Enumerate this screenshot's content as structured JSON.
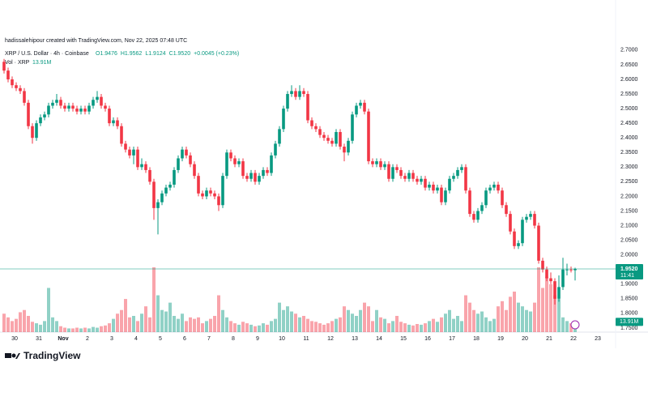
{
  "header": "hadissalehipour created with TradingView.com, Nov 22, 2025 07:48 UTC",
  "legend": {
    "symbol": "XRP / U.S. Dollar · 4h · Coinbase",
    "ohlc": [
      "O1.9476",
      "H1.9562",
      "L1.9124",
      "C1.9520",
      "+0.0045 (+0.23%)"
    ],
    "volume_name": "Vol · XRP",
    "volume_value": "13.91M"
  },
  "price_tag": {
    "price": "1.9520",
    "countdown": "11:41"
  },
  "volume_tag": "13.91M",
  "brand": "TradingView",
  "chart_data": {
    "type": "candlestick",
    "up_color": "#089981",
    "down_color": "#f23645",
    "price_line_color": "#089981",
    "ylim": [
      1.736,
      2.719
    ],
    "yticks": [
      {
        "value": 1.75,
        "label": "1.7500"
      },
      {
        "value": 1.8,
        "label": "1.8000"
      },
      {
        "value": 1.85,
        "label": "1.8500"
      },
      {
        "value": 1.9,
        "label": "1.9000"
      },
      {
        "value": 1.95,
        "label": "1.9500"
      },
      {
        "value": 2.0,
        "label": "2.0000"
      },
      {
        "value": 2.05,
        "label": "2.0500"
      },
      {
        "value": 2.1,
        "label": "2.1000"
      },
      {
        "value": 2.15,
        "label": "2.1500"
      },
      {
        "value": 2.2,
        "label": "2.2000"
      },
      {
        "value": 2.25,
        "label": "2.2500"
      },
      {
        "value": 2.3,
        "label": "2.3000"
      },
      {
        "value": 2.35,
        "label": "2.3500"
      },
      {
        "value": 2.4,
        "label": "2.4000"
      },
      {
        "value": 2.45,
        "label": "2.4500"
      },
      {
        "value": 2.5,
        "label": "2.5000"
      },
      {
        "value": 2.55,
        "label": "2.5500"
      },
      {
        "value": 2.6,
        "label": "2.6000"
      },
      {
        "value": 2.65,
        "label": "2.6500"
      },
      {
        "value": 2.7,
        "label": "2.7000"
      }
    ],
    "x_labels": [
      "30",
      "31",
      "Nov",
      "2",
      "3",
      "4",
      "5",
      "6",
      "7",
      "8",
      "9",
      "10",
      "11",
      "12",
      "13",
      "14",
      "15",
      "16",
      "17",
      "18",
      "19",
      "20",
      "21",
      "22",
      "23"
    ],
    "grid": false,
    "candles": [
      [
        2.66,
        2.67,
        2.62,
        2.63
      ],
      [
        2.63,
        2.64,
        2.59,
        2.6
      ],
      [
        2.6,
        2.61,
        2.57,
        2.58
      ],
      [
        2.58,
        2.59,
        2.56,
        2.57
      ],
      [
        2.57,
        2.58,
        2.55,
        2.56
      ],
      [
        2.56,
        2.57,
        2.51,
        2.52
      ],
      [
        2.52,
        2.53,
        2.43,
        2.44
      ],
      [
        2.44,
        2.45,
        2.38,
        2.4
      ],
      [
        2.4,
        2.46,
        2.39,
        2.45
      ],
      [
        2.45,
        2.48,
        2.44,
        2.47
      ],
      [
        2.47,
        2.49,
        2.46,
        2.48
      ],
      [
        2.48,
        2.52,
        2.47,
        2.51
      ],
      [
        2.51,
        2.53,
        2.5,
        2.52
      ],
      [
        2.52,
        2.55,
        2.51,
        2.53
      ],
      [
        2.53,
        2.54,
        2.5,
        2.51
      ],
      [
        2.51,
        2.52,
        2.49,
        2.5
      ],
      [
        2.5,
        2.52,
        2.49,
        2.51
      ],
      [
        2.51,
        2.52,
        2.49,
        2.5
      ],
      [
        2.5,
        2.51,
        2.48,
        2.49
      ],
      [
        2.49,
        2.51,
        2.48,
        2.5
      ],
      [
        2.5,
        2.51,
        2.48,
        2.49
      ],
      [
        2.49,
        2.52,
        2.48,
        2.51
      ],
      [
        2.51,
        2.54,
        2.5,
        2.53
      ],
      [
        2.53,
        2.56,
        2.52,
        2.54
      ],
      [
        2.54,
        2.55,
        2.5,
        2.51
      ],
      [
        2.51,
        2.52,
        2.49,
        2.5
      ],
      [
        2.5,
        2.51,
        2.44,
        2.45
      ],
      [
        2.45,
        2.47,
        2.44,
        2.46
      ],
      [
        2.46,
        2.47,
        2.43,
        2.44
      ],
      [
        2.44,
        2.45,
        2.37,
        2.38
      ],
      [
        2.38,
        2.39,
        2.35,
        2.36
      ],
      [
        2.36,
        2.37,
        2.33,
        2.34
      ],
      [
        2.34,
        2.37,
        2.31,
        2.36
      ],
      [
        2.36,
        2.37,
        2.29,
        2.3
      ],
      [
        2.3,
        2.33,
        2.29,
        2.31
      ],
      [
        2.31,
        2.32,
        2.28,
        2.29
      ],
      [
        2.29,
        2.3,
        2.24,
        2.25
      ],
      [
        2.25,
        2.26,
        2.12,
        2.16
      ],
      [
        2.16,
        2.19,
        2.07,
        2.18
      ],
      [
        2.18,
        2.22,
        2.17,
        2.21
      ],
      [
        2.21,
        2.24,
        2.2,
        2.23
      ],
      [
        2.23,
        2.25,
        2.22,
        2.24
      ],
      [
        2.24,
        2.3,
        2.23,
        2.29
      ],
      [
        2.29,
        2.34,
        2.28,
        2.33
      ],
      [
        2.33,
        2.37,
        2.32,
        2.36
      ],
      [
        2.36,
        2.37,
        2.33,
        2.34
      ],
      [
        2.34,
        2.35,
        2.3,
        2.31
      ],
      [
        2.31,
        2.32,
        2.26,
        2.27
      ],
      [
        2.27,
        2.28,
        2.2,
        2.21
      ],
      [
        2.21,
        2.22,
        2.19,
        2.2
      ],
      [
        2.2,
        2.23,
        2.19,
        2.22
      ],
      [
        2.22,
        2.23,
        2.2,
        2.21
      ],
      [
        2.21,
        2.22,
        2.19,
        2.2
      ],
      [
        2.2,
        2.21,
        2.15,
        2.17
      ],
      [
        2.17,
        2.28,
        2.16,
        2.27
      ],
      [
        2.27,
        2.36,
        2.26,
        2.35
      ],
      [
        2.35,
        2.36,
        2.32,
        2.33
      ],
      [
        2.33,
        2.34,
        2.3,
        2.31
      ],
      [
        2.31,
        2.33,
        2.3,
        2.32
      ],
      [
        2.32,
        2.33,
        2.26,
        2.27
      ],
      [
        2.27,
        2.28,
        2.25,
        2.26
      ],
      [
        2.26,
        2.29,
        2.25,
        2.28
      ],
      [
        2.28,
        2.29,
        2.24,
        2.25
      ],
      [
        2.25,
        2.28,
        2.24,
        2.27
      ],
      [
        2.27,
        2.3,
        2.26,
        2.29
      ],
      [
        2.29,
        2.3,
        2.27,
        2.28
      ],
      [
        2.28,
        2.35,
        2.27,
        2.34
      ],
      [
        2.34,
        2.39,
        2.33,
        2.38
      ],
      [
        2.38,
        2.44,
        2.37,
        2.43
      ],
      [
        2.43,
        2.51,
        2.42,
        2.5
      ],
      [
        2.5,
        2.56,
        2.49,
        2.55
      ],
      [
        2.55,
        2.58,
        2.54,
        2.56
      ],
      [
        2.56,
        2.57,
        2.53,
        2.54
      ],
      [
        2.54,
        2.58,
        2.53,
        2.56
      ],
      [
        2.56,
        2.57,
        2.54,
        2.55
      ],
      [
        2.55,
        2.56,
        2.45,
        2.46
      ],
      [
        2.46,
        2.47,
        2.43,
        2.44
      ],
      [
        2.44,
        2.45,
        2.42,
        2.43
      ],
      [
        2.43,
        2.44,
        2.4,
        2.41
      ],
      [
        2.41,
        2.42,
        2.39,
        2.4
      ],
      [
        2.4,
        2.41,
        2.38,
        2.39
      ],
      [
        2.39,
        2.4,
        2.37,
        2.38
      ],
      [
        2.38,
        2.43,
        2.37,
        2.42
      ],
      [
        2.42,
        2.43,
        2.36,
        2.37
      ],
      [
        2.37,
        2.38,
        2.32,
        2.35
      ],
      [
        2.35,
        2.4,
        2.34,
        2.39
      ],
      [
        2.39,
        2.49,
        2.38,
        2.48
      ],
      [
        2.48,
        2.52,
        2.47,
        2.51
      ],
      [
        2.51,
        2.53,
        2.5,
        2.52
      ],
      [
        2.52,
        2.53,
        2.48,
        2.49
      ],
      [
        2.49,
        2.5,
        2.31,
        2.32
      ],
      [
        2.32,
        2.33,
        2.3,
        2.31
      ],
      [
        2.31,
        2.33,
        2.3,
        2.32
      ],
      [
        2.32,
        2.33,
        2.29,
        2.3
      ],
      [
        2.3,
        2.32,
        2.29,
        2.31
      ],
      [
        2.31,
        2.32,
        2.25,
        2.26
      ],
      [
        2.26,
        2.31,
        2.25,
        2.3
      ],
      [
        2.3,
        2.31,
        2.28,
        2.29
      ],
      [
        2.29,
        2.3,
        2.26,
        2.27
      ],
      [
        2.27,
        2.28,
        2.25,
        2.26
      ],
      [
        2.26,
        2.29,
        2.25,
        2.28
      ],
      [
        2.28,
        2.29,
        2.25,
        2.26
      ],
      [
        2.26,
        2.27,
        2.24,
        2.25
      ],
      [
        2.25,
        2.27,
        2.24,
        2.26
      ],
      [
        2.26,
        2.27,
        2.22,
        2.23
      ],
      [
        2.23,
        2.25,
        2.22,
        2.24
      ],
      [
        2.24,
        2.25,
        2.21,
        2.22
      ],
      [
        2.22,
        2.24,
        2.21,
        2.23
      ],
      [
        2.23,
        2.24,
        2.17,
        2.18
      ],
      [
        2.18,
        2.23,
        2.17,
        2.22
      ],
      [
        2.22,
        2.27,
        2.21,
        2.26
      ],
      [
        2.26,
        2.28,
        2.25,
        2.27
      ],
      [
        2.27,
        2.3,
        2.26,
        2.29
      ],
      [
        2.29,
        2.31,
        2.28,
        2.3
      ],
      [
        2.3,
        2.31,
        2.21,
        2.22
      ],
      [
        2.22,
        2.23,
        2.13,
        2.14
      ],
      [
        2.14,
        2.15,
        2.11,
        2.12
      ],
      [
        2.12,
        2.16,
        2.11,
        2.15
      ],
      [
        2.15,
        2.18,
        2.14,
        2.17
      ],
      [
        2.17,
        2.23,
        2.16,
        2.22
      ],
      [
        2.22,
        2.24,
        2.21,
        2.23
      ],
      [
        2.23,
        2.25,
        2.22,
        2.24
      ],
      [
        2.24,
        2.25,
        2.21,
        2.22
      ],
      [
        2.22,
        2.23,
        2.16,
        2.17
      ],
      [
        2.17,
        2.18,
        2.13,
        2.14
      ],
      [
        2.14,
        2.15,
        2.07,
        2.08
      ],
      [
        2.08,
        2.09,
        2.02,
        2.03
      ],
      [
        2.03,
        2.05,
        2.02,
        2.04
      ],
      [
        2.04,
        2.13,
        2.03,
        2.12
      ],
      [
        2.12,
        2.14,
        2.11,
        2.13
      ],
      [
        2.13,
        2.15,
        2.12,
        2.14
      ],
      [
        2.14,
        2.15,
        2.09,
        2.1
      ],
      [
        2.1,
        2.11,
        1.97,
        1.98
      ],
      [
        1.98,
        1.99,
        1.94,
        1.95
      ],
      [
        1.95,
        1.96,
        1.91,
        1.92
      ],
      [
        1.92,
        1.94,
        1.9,
        1.91
      ],
      [
        1.91,
        1.92,
        1.83,
        1.85
      ],
      [
        1.85,
        1.93,
        1.84,
        1.89
      ],
      [
        1.89,
        1.99,
        1.88,
        1.95
      ],
      [
        1.95,
        1.97,
        1.93,
        1.95
      ],
      [
        1.95,
        1.96,
        1.94,
        1.9476
      ],
      [
        1.9476,
        1.9562,
        1.9124,
        1.952
      ]
    ],
    "volume": [
      25,
      20,
      15,
      18,
      27,
      30,
      22,
      14,
      12,
      10,
      15,
      60,
      20,
      15,
      8,
      6,
      5,
      5,
      6,
      5,
      6,
      5,
      7,
      6,
      8,
      9,
      12,
      18,
      25,
      30,
      45,
      20,
      22,
      15,
      25,
      35,
      20,
      88,
      50,
      30,
      28,
      40,
      22,
      18,
      25,
      15,
      20,
      18,
      20,
      12,
      15,
      18,
      22,
      50,
      30,
      20,
      15,
      12,
      10,
      14,
      12,
      10,
      8,
      9,
      12,
      10,
      15,
      18,
      40,
      30,
      35,
      28,
      25,
      20,
      22,
      18,
      15,
      14,
      12,
      10,
      12,
      15,
      18,
      20,
      35,
      30,
      25,
      22,
      30,
      40,
      35,
      15,
      30,
      20,
      18,
      12,
      15,
      22,
      14,
      12,
      10,
      9,
      11,
      10,
      12,
      15,
      18,
      14,
      20,
      25,
      30,
      18,
      22,
      15,
      50,
      40,
      30,
      25,
      28,
      20,
      15,
      18,
      35,
      42,
      30,
      48,
      55,
      40,
      35,
      30,
      28,
      40,
      88,
      60,
      75,
      65,
      50,
      45,
      20,
      15,
      12,
      13.91
    ]
  }
}
